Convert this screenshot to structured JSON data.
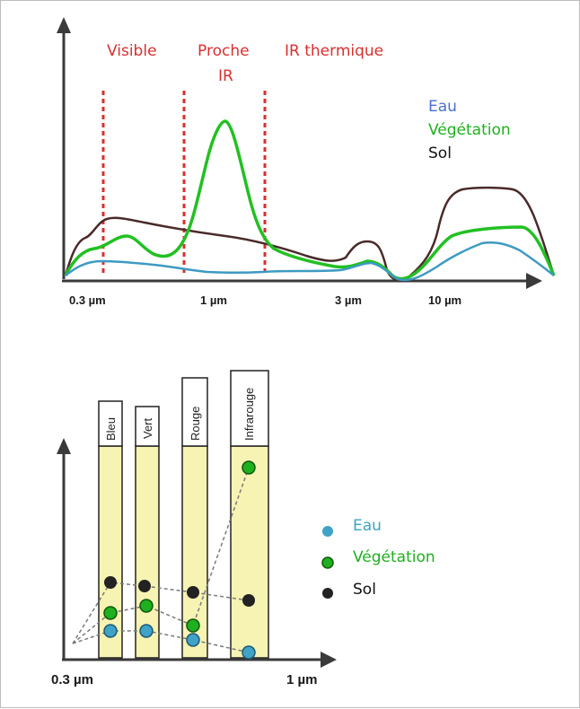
{
  "top_diagram": {
    "regions": [
      "Visible",
      "Proche",
      "IR",
      "IR thermique"
    ],
    "ticks": [
      "0.3 µm",
      "1 µm",
      "3 µm",
      "10 µm"
    ],
    "legend": [
      {
        "label": "Eau",
        "color": "#4a6fd0"
      },
      {
        "label": "Végétation",
        "color": "#1fb01f"
      },
      {
        "label": "Sol",
        "color": "#111111"
      }
    ],
    "curve_colors": {
      "eau": "#3d9ac2",
      "vegetation": "#22c022",
      "sol": "#4a2a2a"
    },
    "region_line_color": "#d83030"
  },
  "bottom_diagram": {
    "bands": [
      "Bleu",
      "Vert",
      "Rouge",
      "Infrarouge"
    ],
    "band_fill": "#f7f3b3",
    "ticks": [
      "0.3 µm",
      "1 µm"
    ],
    "legend": [
      {
        "label": "Eau",
        "color": "#3fa2c6"
      },
      {
        "label": "Végétation",
        "color": "#1fb01f"
      },
      {
        "label": "Sol",
        "color": "#222222"
      }
    ]
  }
}
